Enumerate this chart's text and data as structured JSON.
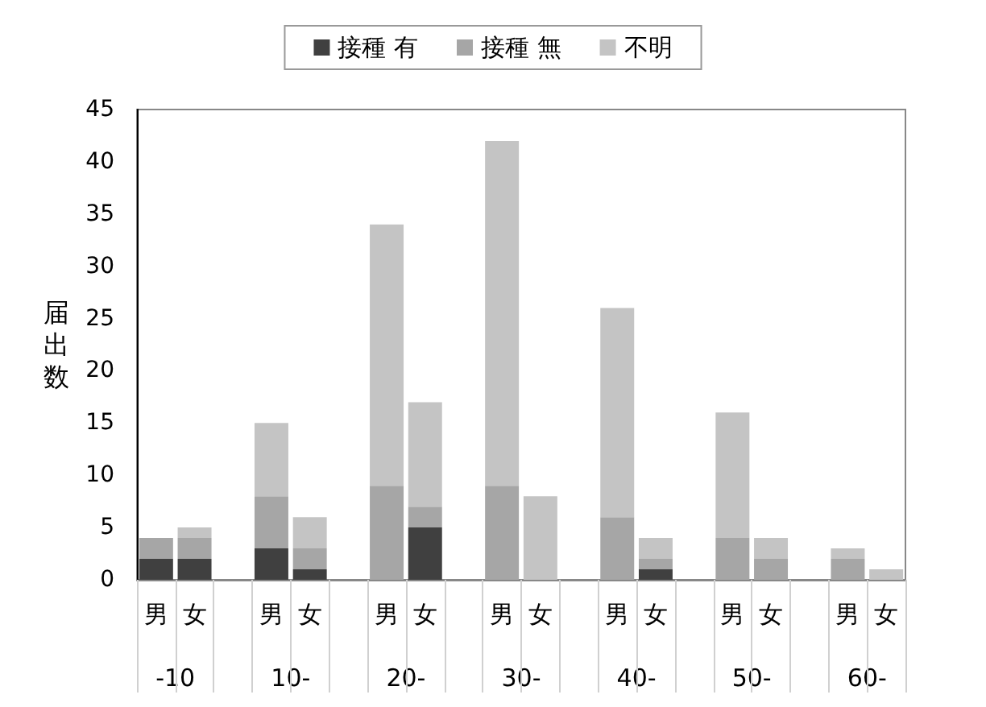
{
  "chart_data": {
    "type": "bar",
    "stacked": true,
    "ylabel": "届出数",
    "categories": [
      "男",
      "女",
      null,
      "男",
      "女",
      null,
      "男",
      "女",
      null,
      "男",
      "女",
      null,
      "男",
      "女",
      null,
      "男",
      "女",
      null,
      "男",
      "女"
    ],
    "annotations": [
      "-10",
      "10-",
      "20-",
      "30-",
      "40-",
      "50-",
      "60-"
    ],
    "series": [
      {
        "name": "接種 有",
        "color": "#404040",
        "values": [
          2,
          2,
          null,
          3,
          1,
          null,
          0,
          5,
          null,
          0,
          0,
          null,
          0,
          1,
          null,
          0,
          0,
          null,
          0,
          0
        ]
      },
      {
        "name": "接種 無",
        "color": "#a6a6a6",
        "values": [
          2,
          2,
          null,
          5,
          2,
          null,
          9,
          2,
          null,
          9,
          0,
          null,
          6,
          1,
          null,
          4,
          2,
          null,
          2,
          0
        ]
      },
      {
        "name": "不明",
        "color": "#c4c4c4",
        "values": [
          0,
          1,
          null,
          7,
          3,
          null,
          25,
          10,
          null,
          33,
          8,
          null,
          20,
          2,
          null,
          12,
          2,
          null,
          1,
          1
        ]
      }
    ],
    "ylim": [
      0,
      45
    ],
    "yticks": [
      0,
      5,
      10,
      15,
      20,
      25,
      30,
      35,
      40,
      45
    ],
    "grid": false,
    "legend": "top"
  }
}
